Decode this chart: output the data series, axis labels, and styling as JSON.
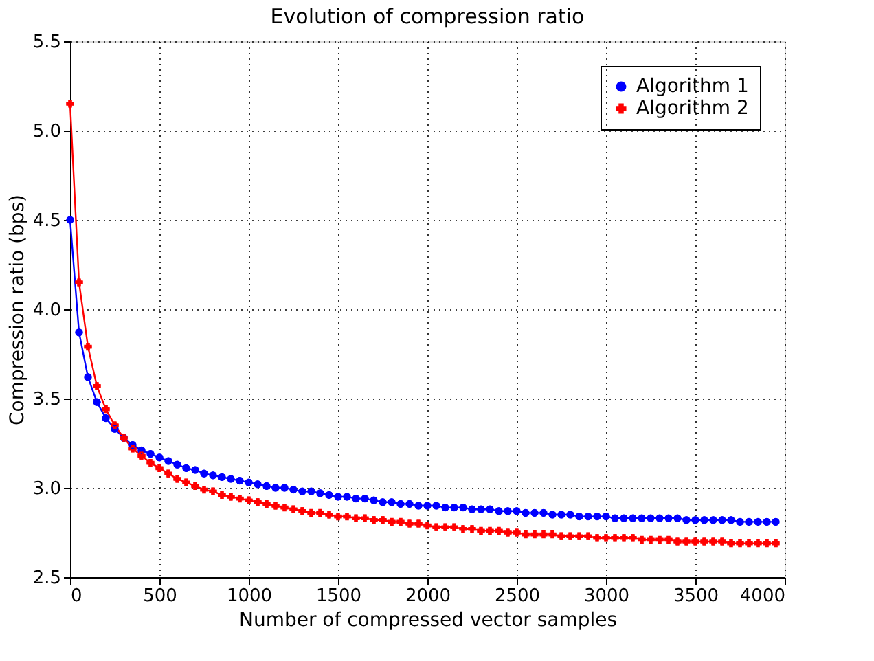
{
  "chart_data": {
    "type": "line",
    "title": "Evolution of compression ratio",
    "xlabel": "Number of compressed vector samples",
    "ylabel": "Compression ratio (bps)",
    "xlim": [
      0,
      4000
    ],
    "xticks": [
      0,
      500,
      1000,
      1500,
      2000,
      2500,
      3000,
      3500,
      4000
    ],
    "ylim": [
      2.5,
      5.5
    ],
    "yticks": [
      2.5,
      {
        "value": 3,
        "label": "3.0"
      },
      3.5,
      {
        "value": 4,
        "label": "4.0"
      },
      4.5,
      {
        "value": 5,
        "label": "5.0"
      },
      5.5
    ],
    "grid": true,
    "legend": "top right",
    "line_style": "solid",
    "x": [
      0,
      50,
      100,
      150,
      200,
      250,
      300,
      350,
      400,
      450,
      500,
      550,
      600,
      650,
      700,
      750,
      800,
      850,
      900,
      950,
      1000,
      1050,
      1100,
      1150,
      1200,
      1250,
      1300,
      1350,
      1400,
      1450,
      1500,
      1550,
      1600,
      1650,
      1700,
      1750,
      1800,
      1850,
      1900,
      1950,
      2000,
      2050,
      2100,
      2150,
      2200,
      2250,
      2300,
      2350,
      2400,
      2450,
      2500,
      2550,
      2600,
      2650,
      2700,
      2750,
      2800,
      2850,
      2900,
      2950,
      3000,
      3050,
      3100,
      3150,
      3200,
      3250,
      3300,
      3350,
      3400,
      3450,
      3500,
      3550,
      3600,
      3650,
      3700,
      3750,
      3800,
      3850,
      3900,
      3950
    ],
    "series": [
      {
        "name": "Algorithm 1",
        "color": "#0000ff",
        "marker": "circle",
        "values": [
          4.5,
          3.87,
          3.62,
          3.48,
          3.39,
          3.33,
          3.28,
          3.24,
          3.21,
          3.19,
          3.17,
          3.15,
          3.13,
          3.11,
          3.1,
          3.08,
          3.07,
          3.06,
          3.05,
          3.04,
          3.03,
          3.02,
          3.01,
          3.0,
          3.0,
          2.99,
          2.98,
          2.98,
          2.97,
          2.96,
          2.95,
          2.95,
          2.94,
          2.94,
          2.93,
          2.92,
          2.92,
          2.91,
          2.91,
          2.9,
          2.9,
          2.9,
          2.89,
          2.89,
          2.89,
          2.88,
          2.88,
          2.88,
          2.87,
          2.87,
          2.87,
          2.86,
          2.86,
          2.86,
          2.85,
          2.85,
          2.85,
          2.84,
          2.84,
          2.84,
          2.84,
          2.83,
          2.83,
          2.83,
          2.83,
          2.83,
          2.83,
          2.83,
          2.83,
          2.82,
          2.82,
          2.82,
          2.82,
          2.82,
          2.82,
          2.81,
          2.81,
          2.81,
          2.81,
          2.81
        ]
      },
      {
        "name": "Algorithm 2",
        "color": "#ff0000",
        "marker": "cross",
        "values": [
          5.15,
          4.15,
          3.79,
          3.57,
          3.44,
          3.35,
          3.28,
          3.22,
          3.18,
          3.14,
          3.11,
          3.08,
          3.05,
          3.03,
          3.01,
          2.99,
          2.98,
          2.96,
          2.95,
          2.94,
          2.93,
          2.92,
          2.91,
          2.9,
          2.89,
          2.88,
          2.87,
          2.86,
          2.86,
          2.85,
          2.84,
          2.84,
          2.83,
          2.83,
          2.82,
          2.82,
          2.81,
          2.81,
          2.8,
          2.8,
          2.79,
          2.78,
          2.78,
          2.78,
          2.77,
          2.77,
          2.76,
          2.76,
          2.76,
          2.75,
          2.75,
          2.74,
          2.74,
          2.74,
          2.74,
          2.73,
          2.73,
          2.73,
          2.73,
          2.72,
          2.72,
          2.72,
          2.72,
          2.72,
          2.71,
          2.71,
          2.71,
          2.71,
          2.7,
          2.7,
          2.7,
          2.7,
          2.7,
          2.7,
          2.69,
          2.69,
          2.69,
          2.69,
          2.69,
          2.69
        ]
      }
    ]
  }
}
